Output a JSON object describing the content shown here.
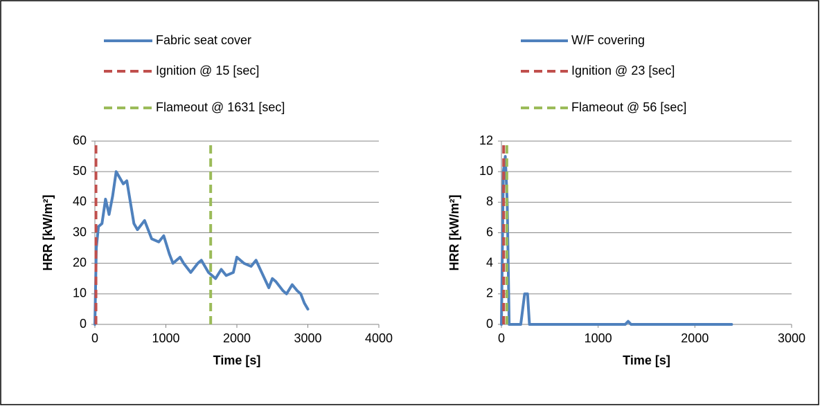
{
  "chart_data": [
    {
      "type": "line",
      "xlabel": "Time [s]",
      "ylabel": "HRR [kW/m²]",
      "xlim": [
        0,
        4000
      ],
      "xticks": [
        0,
        1000,
        2000,
        3000,
        4000
      ],
      "ylim": [
        0,
        60
      ],
      "yticks": [
        0,
        10,
        20,
        30,
        40,
        50,
        60
      ],
      "grid": true,
      "legend": "top-left",
      "series": [
        {
          "name": "Fabric seat cover",
          "color": "#4f81bd",
          "style": "solid",
          "x": [
            0,
            20,
            50,
            100,
            150,
            200,
            250,
            300,
            350,
            400,
            450,
            500,
            550,
            600,
            700,
            800,
            900,
            970,
            1050,
            1100,
            1200,
            1250,
            1350,
            1450,
            1500,
            1600,
            1700,
            1780,
            1850,
            1950,
            2000,
            2100,
            2200,
            2270,
            2350,
            2450,
            2500,
            2550,
            2650,
            2700,
            2780,
            2850,
            2900,
            2950,
            3000
          ],
          "values": [
            0,
            25,
            32,
            33,
            41,
            36,
            42,
            50,
            48,
            46,
            47,
            40,
            33,
            31,
            34,
            28,
            27,
            29,
            23,
            20,
            22,
            20,
            17,
            20,
            21,
            17,
            15,
            18,
            16,
            17,
            22,
            20,
            19,
            21,
            17,
            12,
            15,
            14,
            11,
            10,
            13,
            11,
            10,
            7,
            5
          ]
        },
        {
          "name": "Ignition @ 15 [sec]",
          "color": "#c0504d",
          "style": "dashed",
          "x": [
            15,
            15
          ],
          "values": [
            0,
            60
          ]
        },
        {
          "name": "Flameout @ 1631 [sec]",
          "color": "#9bbb59",
          "style": "dashed",
          "x": [
            1631,
            1631
          ],
          "values": [
            0,
            60
          ]
        }
      ]
    },
    {
      "type": "line",
      "xlabel": "Time [s]",
      "ylabel": "HRR [kW/m²]",
      "xlim": [
        0,
        3000
      ],
      "xticks": [
        0,
        1000,
        2000,
        3000
      ],
      "ylim": [
        0,
        12
      ],
      "yticks": [
        0,
        2,
        4,
        6,
        8,
        10,
        12
      ],
      "grid": true,
      "legend": "top-left",
      "series": [
        {
          "name": "W/F covering",
          "color": "#4f81bd",
          "style": "solid",
          "x": [
            0,
            20,
            40,
            60,
            80,
            200,
            240,
            270,
            290,
            1280,
            1310,
            1340,
            2380
          ],
          "values": [
            0,
            10,
            11,
            8,
            0,
            0,
            2,
            2,
            0,
            0,
            0.2,
            0,
            0
          ]
        },
        {
          "name": "Ignition @ 23 [sec]",
          "color": "#c0504d",
          "style": "dashed",
          "x": [
            23,
            23
          ],
          "values": [
            0,
            12
          ]
        },
        {
          "name": "Flameout @ 56 [sec]",
          "color": "#9bbb59",
          "style": "dashed",
          "x": [
            56,
            56
          ],
          "values": [
            0,
            12
          ]
        }
      ]
    }
  ]
}
